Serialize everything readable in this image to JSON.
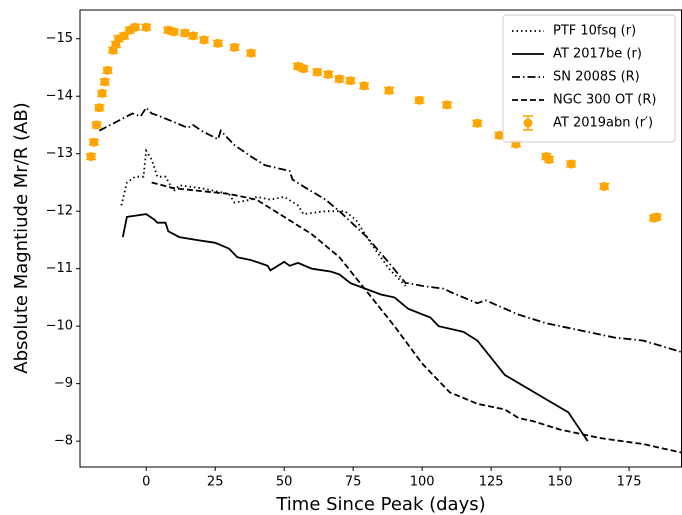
{
  "chart_data": {
    "type": "line",
    "xlabel": "Time Since Peak (days)",
    "ylabel": "Absolute Magntiude Mr/R (AB)",
    "xlim": [
      -24,
      194
    ],
    "ylim": [
      -7.55,
      -15.5
    ],
    "xticks": [
      0,
      25,
      50,
      75,
      100,
      125,
      150,
      175
    ],
    "yticks": [
      {
        "value": -8,
        "label": "−8"
      },
      {
        "value": -9,
        "label": "−9"
      },
      {
        "value": -10,
        "label": "−10"
      },
      {
        "value": -11,
        "label": "−11"
      },
      {
        "value": -12,
        "label": "−12"
      },
      {
        "value": -13,
        "label": "−13"
      },
      {
        "value": -14,
        "label": "−14"
      },
      {
        "value": -15,
        "label": "−15"
      }
    ],
    "legend": "upper right",
    "series": [
      {
        "name": "PTF 10fsq (r)",
        "color": "#000000",
        "linestyle": "dotted",
        "x": [
          -9,
          -7,
          -4,
          -1,
          0,
          2,
          4,
          7,
          10,
          12,
          20,
          30,
          32,
          38,
          40,
          45,
          50,
          55,
          57,
          65,
          72,
          76,
          82,
          88,
          94
        ],
        "values": [
          -12.1,
          -12.5,
          -12.6,
          -12.6,
          -13.05,
          -12.9,
          -12.6,
          -12.6,
          -12.35,
          -12.45,
          -12.4,
          -12.3,
          -12.15,
          -12.2,
          -12.25,
          -12.2,
          -12.25,
          -12.1,
          -11.95,
          -12.0,
          -12.0,
          -11.85,
          -11.4,
          -11.0,
          -10.7
        ]
      },
      {
        "name": "AT 2017be (r)",
        "color": "#000000",
        "linestyle": "solid",
        "x": [
          -8.5,
          -7,
          0,
          3,
          4,
          7,
          8,
          12,
          18,
          25,
          30,
          33,
          38,
          44,
          45,
          50,
          52,
          55,
          60,
          67,
          70,
          74,
          85,
          90,
          95,
          103,
          106,
          115,
          120,
          130,
          153,
          160
        ],
        "values": [
          -11.55,
          -11.9,
          -11.95,
          -11.85,
          -11.8,
          -11.8,
          -11.65,
          -11.55,
          -11.5,
          -11.45,
          -11.35,
          -11.2,
          -11.15,
          -11.05,
          -10.97,
          -11.12,
          -11.05,
          -11.1,
          -11.0,
          -10.95,
          -10.9,
          -10.75,
          -10.55,
          -10.5,
          -10.3,
          -10.15,
          -10.0,
          -9.9,
          -9.75,
          -9.15,
          -8.5,
          -8.0
        ]
      },
      {
        "name": "SN 2008S (R)",
        "color": "#000000",
        "linestyle": "dashdot",
        "x": [
          -17,
          -5,
          -2,
          0,
          2,
          5,
          15,
          17,
          20,
          26,
          27,
          32,
          38,
          43,
          52,
          53,
          58,
          65,
          70,
          80,
          88,
          94,
          95,
          100,
          108,
          110,
          120,
          123,
          135,
          145,
          160,
          170,
          180,
          194
        ],
        "values": [
          -13.4,
          -13.7,
          -13.65,
          -13.8,
          -13.7,
          -13.65,
          -13.45,
          -13.5,
          -13.4,
          -13.25,
          -13.4,
          -13.15,
          -12.95,
          -12.8,
          -12.7,
          -12.55,
          -12.4,
          -12.2,
          -12.0,
          -11.55,
          -11.1,
          -10.75,
          -10.75,
          -10.7,
          -10.65,
          -10.6,
          -10.4,
          -10.45,
          -10.2,
          -10.05,
          -9.9,
          -9.8,
          -9.75,
          -9.55
        ]
      },
      {
        "name": "NGC 300 OT (R)",
        "color": "#000000",
        "linestyle": "dashed",
        "x": [
          2,
          10,
          20,
          30,
          40,
          50,
          55,
          60,
          70,
          80,
          90,
          100,
          110,
          115,
          120,
          130,
          135,
          140,
          150,
          165,
          180,
          194
        ],
        "values": [
          -12.5,
          -12.4,
          -12.35,
          -12.3,
          -12.2,
          -11.9,
          -11.75,
          -11.6,
          -11.2,
          -10.6,
          -10.0,
          -9.35,
          -8.85,
          -8.75,
          -8.65,
          -8.55,
          -8.4,
          -8.35,
          -8.2,
          -8.05,
          -7.95,
          -7.8
        ]
      },
      {
        "name": "AT 2019abn (r′)",
        "color": "#ffa500",
        "linestyle": "none",
        "marker": "o",
        "yerr": 0.05,
        "x": [
          -20,
          -19,
          -18,
          -17,
          -16,
          -15,
          -14,
          -12,
          -11,
          -10,
          -8,
          -6,
          -4,
          0,
          8,
          10,
          14,
          17,
          21,
          26,
          32,
          38,
          55,
          57,
          62,
          66,
          70,
          74,
          79,
          88,
          99,
          109,
          120,
          128,
          134,
          145,
          146,
          154,
          166,
          184,
          185
        ],
        "values": [
          -12.95,
          -13.2,
          -13.5,
          -13.8,
          -14.05,
          -14.25,
          -14.45,
          -14.8,
          -14.9,
          -15.0,
          -15.05,
          -15.15,
          -15.2,
          -15.2,
          -15.15,
          -15.12,
          -15.1,
          -15.05,
          -14.98,
          -14.92,
          -14.85,
          -14.75,
          -14.52,
          -14.48,
          -14.42,
          -14.38,
          -14.3,
          -14.27,
          -14.18,
          -14.1,
          -13.93,
          -13.85,
          -13.53,
          -13.32,
          -13.17,
          -12.95,
          -12.9,
          -12.82,
          -12.43,
          -11.88,
          -11.9
        ]
      }
    ]
  }
}
